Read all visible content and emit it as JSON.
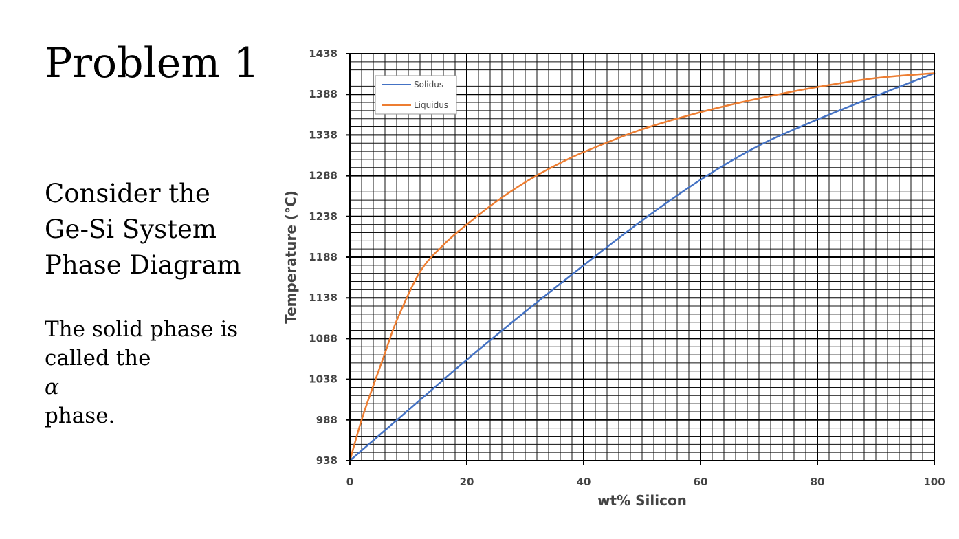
{
  "slide": {
    "title": "Problem 1",
    "subtitle_lines": [
      "Consider the",
      "Ge-Si System",
      "Phase Diagram"
    ],
    "note_line1": "The solid phase is",
    "note_line2_prefix": "called the ",
    "note_symbol": "α",
    "note_line3": "phase."
  },
  "chart_data": {
    "type": "line",
    "title": "",
    "xlabel": "wt% Silicon",
    "ylabel": "Temperature (°C)",
    "xlim": [
      0,
      100
    ],
    "ylim": [
      938,
      1438
    ],
    "x_ticks": [
      0,
      20,
      40,
      60,
      80,
      100
    ],
    "y_ticks": [
      938,
      988,
      1038,
      1088,
      1138,
      1188,
      1238,
      1288,
      1338,
      1388,
      1438
    ],
    "x_minor_step": 2,
    "y_minor_step": 10,
    "grid": true,
    "legend_position": "top-left",
    "series": [
      {
        "name": "Solidus",
        "color": "#4472c4",
        "x": [
          0,
          10,
          20,
          30,
          40,
          50,
          60,
          70,
          80,
          90,
          100
        ],
        "y": [
          938,
          1000,
          1062,
          1121,
          1178,
          1233,
          1283,
          1325,
          1357,
          1386,
          1414
        ]
      },
      {
        "name": "Liquidus",
        "color": "#ed7d31",
        "x": [
          0,
          2,
          4,
          6,
          8,
          12,
          16,
          20,
          25,
          30,
          35,
          40,
          50,
          60,
          70,
          80,
          90,
          100
        ],
        "y": [
          938,
          988,
          1030,
          1070,
          1110,
          1170,
          1203,
          1228,
          1256,
          1280,
          1300,
          1317,
          1345,
          1366,
          1383,
          1397,
          1408,
          1414
        ]
      }
    ]
  }
}
